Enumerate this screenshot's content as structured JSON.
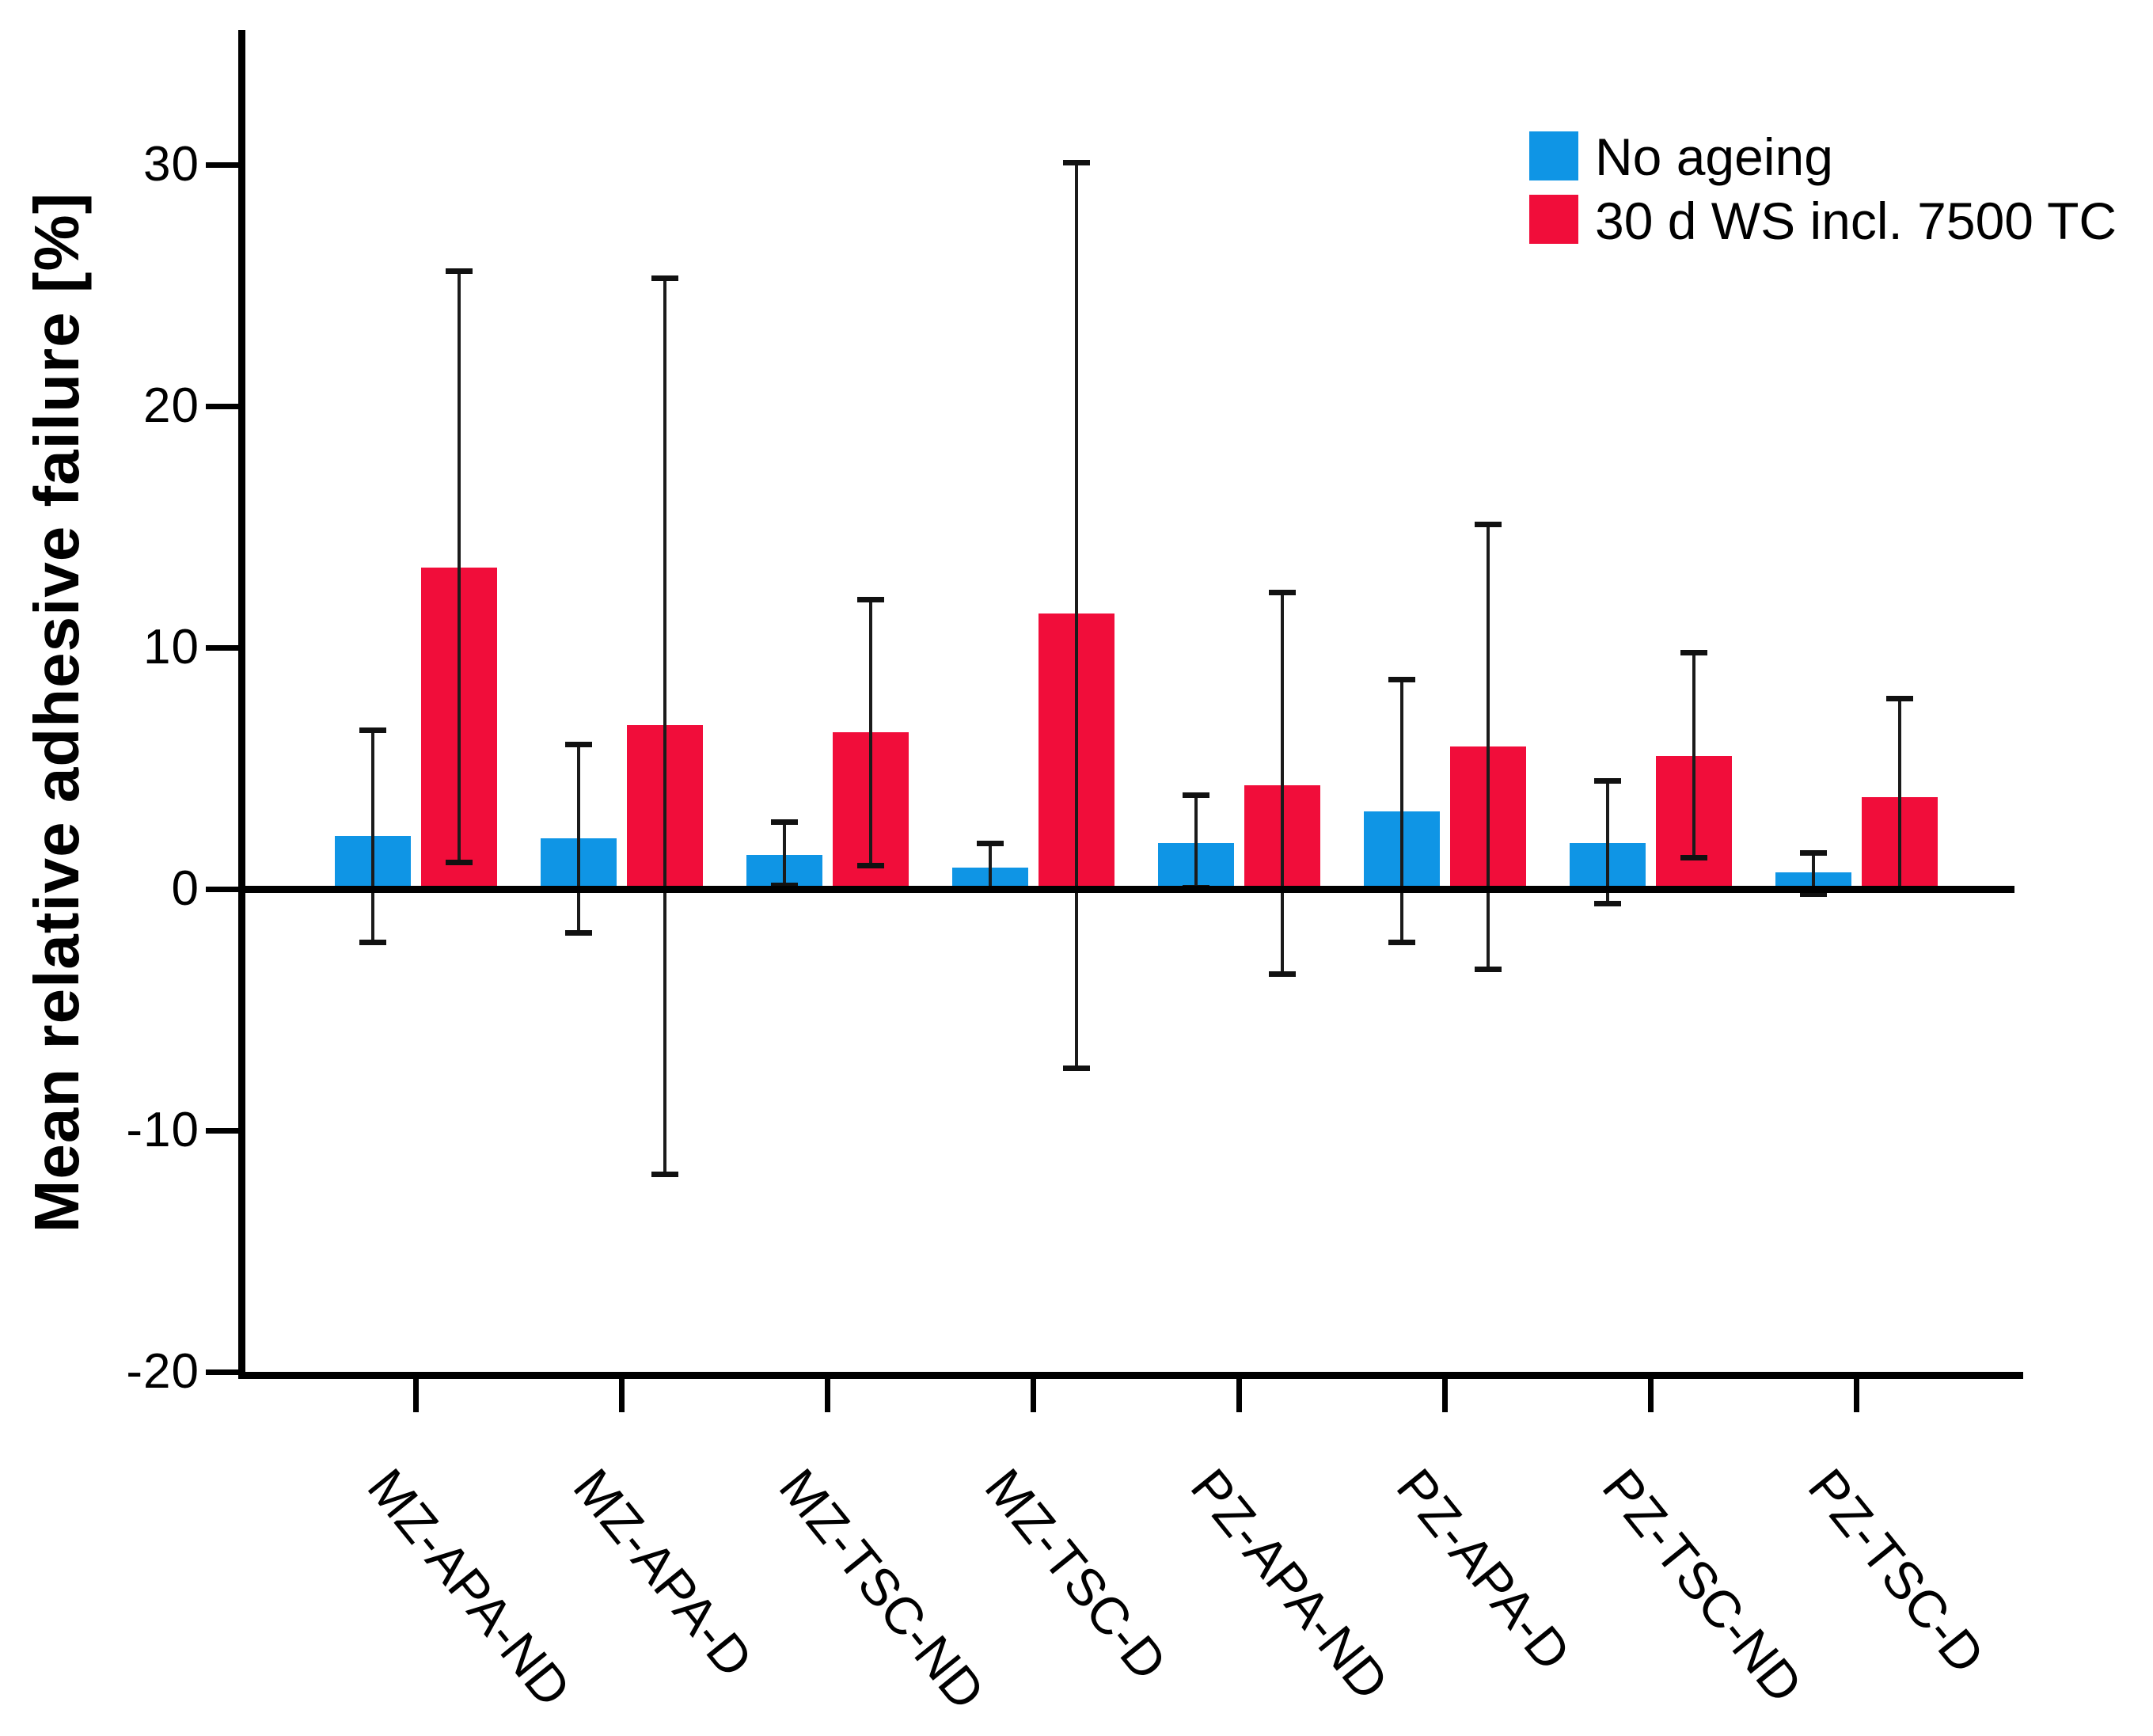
{
  "page": {
    "background": "#ffffff"
  },
  "chart_data": {
    "type": "bar",
    "title": "",
    "xlabel": "",
    "ylabel": "Mean relative adhesive failure [%]",
    "ylim": [
      -20,
      36
    ],
    "yticks": [
      30,
      20,
      10,
      0,
      -10,
      -20
    ],
    "grid": false,
    "legend_position": "top-right",
    "error_bars": true,
    "categories": [
      "MZ-APA-ND",
      "MZ-APA-D",
      "MZ-TSC-ND",
      "MZ-TSC-D",
      "PZ-APA-ND",
      "PZ-APA-D",
      "PZ-TSC-ND",
      "PZ-TSC-D"
    ],
    "series": [
      {
        "name": "No ageing",
        "color": "#0F95E5",
        "values": [
          2.2,
          2.1,
          1.4,
          0.9,
          1.9,
          3.2,
          1.9,
          0.7
        ],
        "err_high": [
          6.6,
          6.0,
          2.8,
          1.9,
          3.9,
          8.7,
          4.5,
          1.5
        ],
        "err_low": [
          -2.2,
          -1.8,
          0.15,
          0.0,
          0.05,
          -2.2,
          -0.6,
          -0.2
        ]
      },
      {
        "name": "30 d WS incl. 7500 TC",
        "color": "#F10D3A",
        "values": [
          13.3,
          6.8,
          6.5,
          11.4,
          4.3,
          5.9,
          5.5,
          3.8
        ],
        "err_high": [
          25.6,
          25.3,
          12.0,
          30.1,
          12.3,
          15.1,
          9.8,
          7.9
        ],
        "err_low": [
          1.1,
          -11.8,
          1.0,
          -7.4,
          -3.5,
          -3.3,
          1.3,
          0.0
        ]
      }
    ],
    "axis_color": "#000000",
    "error_bar_color": "#1b1b1b"
  }
}
